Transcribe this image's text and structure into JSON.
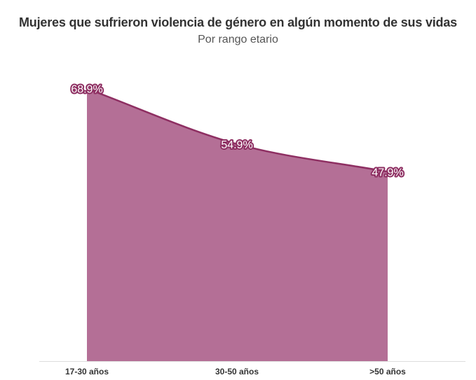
{
  "chart_data": {
    "type": "area",
    "title": "Mujeres que sufrieron violencia de género en algún momento de sus vidas",
    "subtitle": "Por rango etario",
    "categories": [
      "17-30 años",
      "30-50 años",
      ">50 años"
    ],
    "values": [
      68.9,
      54.9,
      47.9
    ],
    "data_labels": [
      "68.9%",
      "54.9%",
      "47.9%"
    ],
    "ylim": [
      0,
      75
    ],
    "grid": false,
    "legend": "none"
  },
  "colors": {
    "area_fill": "#b46f96",
    "line": "#8e2f62",
    "label_outline": "#8e2f62",
    "axis": "#dddddd"
  }
}
